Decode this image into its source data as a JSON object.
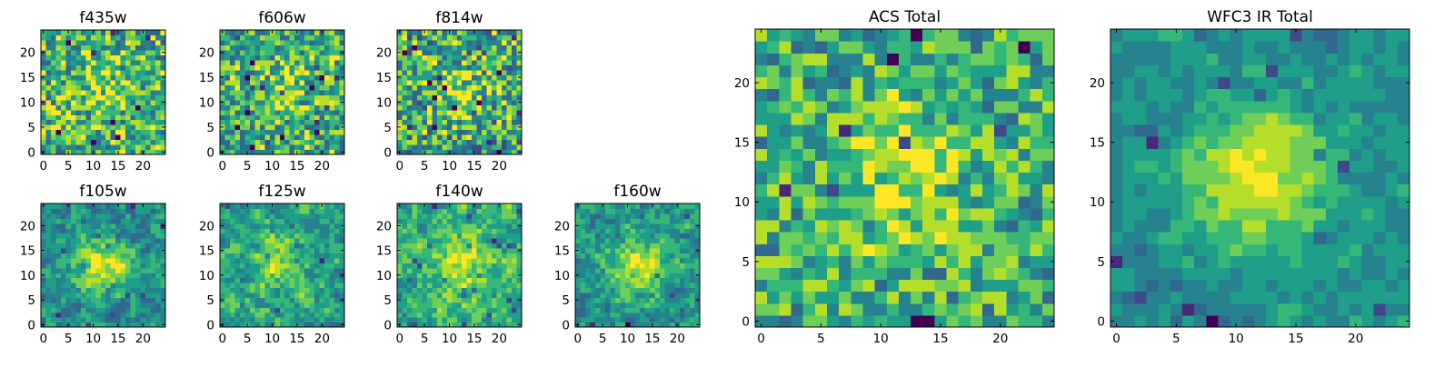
{
  "figure": {
    "description_type": "multi-panel heatmap figure",
    "colormap": [
      "#440154",
      "#482878",
      "#3e4989",
      "#31688e",
      "#26828e",
      "#1f9e89",
      "#35b779",
      "#6ece58",
      "#b5de2b",
      "#fde725"
    ]
  },
  "chart_data": [
    {
      "type": "heatmap",
      "title": "f435w",
      "grid_size": 25,
      "xlim": [
        0,
        24
      ],
      "ylim": [
        0,
        24
      ],
      "xticks": [
        0,
        5,
        10,
        15,
        20
      ],
      "yticks": [
        0,
        5,
        10,
        15,
        20
      ],
      "center_peak": 0.15,
      "noise": 0.35,
      "base": 0.65,
      "seed": 11,
      "smooth": 0
    },
    {
      "type": "heatmap",
      "title": "f606w",
      "grid_size": 25,
      "xlim": [
        0,
        24
      ],
      "ylim": [
        0,
        24
      ],
      "xticks": [
        0,
        5,
        10,
        15,
        20
      ],
      "yticks": [
        0,
        5,
        10,
        15,
        20
      ],
      "center_peak": 0.2,
      "noise": 0.35,
      "base": 0.62,
      "seed": 23,
      "smooth": 0
    },
    {
      "type": "heatmap",
      "title": "f814w",
      "grid_size": 25,
      "xlim": [
        0,
        24
      ],
      "ylim": [
        0,
        24
      ],
      "xticks": [
        0,
        5,
        10,
        15,
        20
      ],
      "yticks": [
        0,
        5,
        10,
        15,
        20
      ],
      "center_peak": 0.25,
      "noise": 0.38,
      "base": 0.6,
      "seed": 37,
      "smooth": 0
    },
    {
      "type": "heatmap",
      "title": "f105w",
      "grid_size": 25,
      "xlim": [
        0,
        24
      ],
      "ylim": [
        0,
        24
      ],
      "xticks": [
        0,
        5,
        10,
        15,
        20
      ],
      "yticks": [
        0,
        5,
        10,
        15,
        20
      ],
      "center_peak": 0.45,
      "noise": 0.3,
      "base": 0.5,
      "seed": 41,
      "smooth": 1
    },
    {
      "type": "heatmap",
      "title": "f125w",
      "grid_size": 25,
      "xlim": [
        0,
        24
      ],
      "ylim": [
        0,
        24
      ],
      "xticks": [
        0,
        5,
        10,
        15,
        20
      ],
      "yticks": [
        0,
        5,
        10,
        15,
        20
      ],
      "center_peak": 0.25,
      "noise": 0.32,
      "base": 0.58,
      "seed": 53,
      "smooth": 1
    },
    {
      "type": "heatmap",
      "title": "f140w",
      "grid_size": 25,
      "xlim": [
        0,
        24
      ],
      "ylim": [
        0,
        24
      ],
      "xticks": [
        0,
        5,
        10,
        15,
        20
      ],
      "yticks": [
        0,
        5,
        10,
        15,
        20
      ],
      "center_peak": 0.3,
      "noise": 0.3,
      "base": 0.65,
      "seed": 67,
      "smooth": 1
    },
    {
      "type": "heatmap",
      "title": "f160w",
      "grid_size": 25,
      "xlim": [
        0,
        24
      ],
      "ylim": [
        0,
        24
      ],
      "xticks": [
        0,
        5,
        10,
        15,
        20
      ],
      "yticks": [
        0,
        5,
        10,
        15,
        20
      ],
      "center_peak": 0.45,
      "noise": 0.3,
      "base": 0.52,
      "seed": 79,
      "smooth": 1
    },
    {
      "type": "heatmap",
      "title": "ACS Total",
      "grid_size": 25,
      "xlim": [
        0,
        24
      ],
      "ylim": [
        0,
        24
      ],
      "xticks": [
        0,
        5,
        10,
        15,
        20
      ],
      "yticks": [
        0,
        5,
        10,
        15,
        20
      ],
      "center_peak": 0.3,
      "noise": 0.28,
      "base": 0.62,
      "seed": 97,
      "smooth": 0
    },
    {
      "type": "heatmap",
      "title": "WFC3 IR Total",
      "grid_size": 25,
      "xlim": [
        0,
        24
      ],
      "ylim": [
        0,
        24
      ],
      "xticks": [
        0,
        5,
        10,
        15,
        20
      ],
      "yticks": [
        0,
        5,
        10,
        15,
        20
      ],
      "center_peak": 0.5,
      "noise": 0.2,
      "base": 0.5,
      "seed": 113,
      "smooth": 1
    }
  ]
}
